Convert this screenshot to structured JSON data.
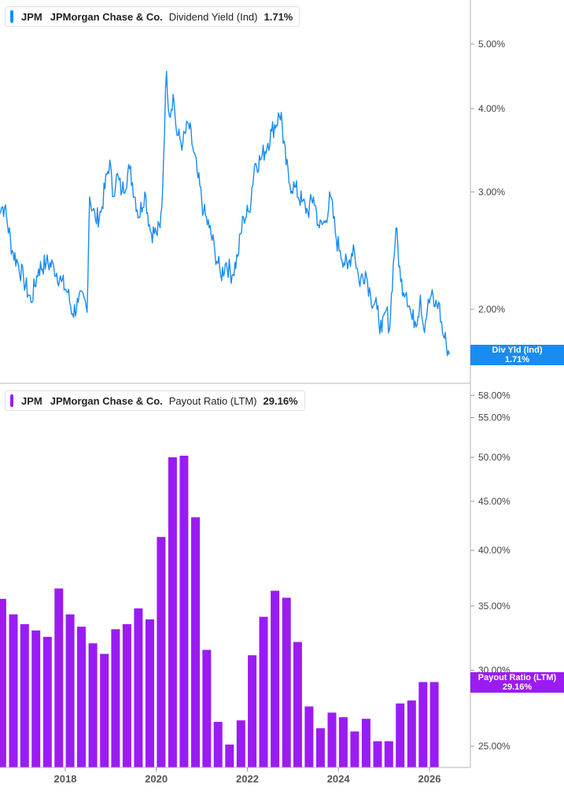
{
  "chart_data": [
    {
      "type": "line",
      "legend": {
        "ticker": "JPM",
        "company": "JPMorgan Chase & Co.",
        "metric": "Dividend Yield (Ind)",
        "value": "1.71%",
        "color": "#1a8cf0"
      },
      "y_scale": "log",
      "ylim": [
        1.62,
        5.6
      ],
      "y_ticks": [
        {
          "value": 5.0,
          "label": "5.00%"
        },
        {
          "value": 4.0,
          "label": "4.00%"
        },
        {
          "value": 3.0,
          "label": "3.00%"
        },
        {
          "value": 2.0,
          "label": "2.00%"
        }
      ],
      "flag": {
        "label": "Div Yld (Ind)",
        "value": "1.71%",
        "y": 1.71
      },
      "series": [
        {
          "x": [
            "2016-07-01",
            "2016-09-01",
            "2016-11-01",
            "2016-12-15",
            "2017-02-01",
            "2017-04-01",
            "2017-06-01",
            "2017-08-01",
            "2017-10-01",
            "2017-12-01",
            "2018-01-20",
            "2018-03-01",
            "2018-04-15",
            "2018-06-01",
            "2018-06-25",
            "2018-07-15",
            "2018-09-01",
            "2018-10-15",
            "2018-12-24",
            "2019-01-15",
            "2019-02-15",
            "2019-04-01",
            "2019-06-01",
            "2019-08-15",
            "2019-10-01",
            "2019-11-15",
            "2020-01-01",
            "2020-02-01",
            "2020-02-20",
            "2020-03-23",
            "2020-04-15",
            "2020-05-15",
            "2020-06-15",
            "2020-08-01",
            "2020-09-15",
            "2020-10-20",
            "2020-12-01",
            "2021-01-15",
            "2021-03-01",
            "2021-04-15",
            "2021-06-01",
            "2021-07-15",
            "2021-09-01",
            "2021-10-15",
            "2021-12-01",
            "2022-01-15",
            "2022-03-01",
            "2022-04-15",
            "2022-06-15",
            "2022-07-15",
            "2022-09-30",
            "2022-10-15",
            "2022-12-01",
            "2023-01-15",
            "2023-03-15",
            "2023-05-01",
            "2023-06-15",
            "2023-08-01",
            "2023-09-15",
            "2023-10-30",
            "2023-12-15",
            "2024-01-15",
            "2024-03-15",
            "2024-05-01",
            "2024-06-15",
            "2024-08-05",
            "2024-09-15",
            "2024-11-06",
            "2024-12-15",
            "2025-01-20",
            "2025-02-15",
            "2025-04-07",
            "2025-05-15",
            "2025-06-30",
            "2025-08-15",
            "2025-10-01",
            "2025-10-20",
            "2025-11-15",
            "2025-12-15",
            "2026-01-15",
            "2026-02-15",
            "2026-03-15",
            "2026-04-15",
            "2026-05-15",
            "2026-06-10"
          ],
          "y": [
            2.88,
            2.84,
            2.45,
            2.35,
            2.22,
            2.05,
            2.3,
            2.35,
            2.32,
            2.2,
            2.12,
            1.97,
            2.05,
            2.08,
            1.98,
            2.95,
            2.72,
            2.8,
            3.35,
            2.95,
            3.18,
            3.0,
            3.25,
            2.75,
            3.0,
            2.62,
            2.6,
            2.65,
            3.0,
            4.55,
            3.9,
            4.2,
            3.65,
            3.55,
            3.8,
            3.5,
            3.15,
            2.8,
            2.65,
            2.45,
            2.25,
            2.35,
            2.25,
            2.4,
            2.75,
            2.8,
            3.3,
            3.35,
            3.55,
            3.7,
            3.95,
            3.55,
            3.1,
            3.05,
            2.9,
            2.8,
            2.95,
            2.65,
            2.7,
            2.95,
            2.55,
            2.45,
            2.3,
            2.5,
            2.2,
            2.28,
            2.1,
            2.0,
            1.85,
            2.0,
            1.87,
            2.65,
            2.2,
            2.12,
            1.93,
            1.95,
            2.1,
            1.87,
            2.0,
            2.1,
            2.02,
            2.05,
            1.85,
            1.78,
            1.71
          ]
        }
      ]
    },
    {
      "type": "bar",
      "legend": {
        "ticker": "JPM",
        "company": "JPMorgan Chase & Co.",
        "metric": "Payout Ratio (LTM)",
        "value": "29.16%",
        "color": "#9a1cf2"
      },
      "y_scale": "log",
      "ylim": [
        23.7,
        59.5
      ],
      "y_ticks": [
        {
          "value": 58.0,
          "label": "58.00%"
        },
        {
          "value": 55.0,
          "label": "55.00%"
        },
        {
          "value": 50.0,
          "label": "50.00%"
        },
        {
          "value": 45.0,
          "label": "45.00%"
        },
        {
          "value": 40.0,
          "label": "40.00%"
        },
        {
          "value": 35.0,
          "label": "35.00%"
        },
        {
          "value": 30.0,
          "label": "30.00%"
        },
        {
          "value": 25.0,
          "label": "25.00%"
        }
      ],
      "flag": {
        "label": "Payout Ratio (LTM)",
        "value": "29.16%",
        "y": 29.16
      },
      "series": [
        {
          "x": [
            "2016-03-31",
            "2016-06-30",
            "2016-09-30",
            "2016-12-31",
            "2017-03-31",
            "2017-06-30",
            "2017-09-30",
            "2017-12-31",
            "2018-03-31",
            "2018-06-30",
            "2018-09-30",
            "2018-12-31",
            "2019-03-31",
            "2019-06-30",
            "2019-09-30",
            "2019-12-31",
            "2020-03-31",
            "2020-06-30",
            "2020-09-30",
            "2020-12-31",
            "2021-03-31",
            "2021-06-30",
            "2021-09-30",
            "2021-12-31",
            "2022-03-31",
            "2022-06-30",
            "2022-09-30",
            "2022-12-31",
            "2023-03-31",
            "2023-06-30",
            "2023-09-30",
            "2023-12-31",
            "2024-03-31",
            "2024-06-30",
            "2024-09-30",
            "2024-12-31",
            "2025-03-31",
            "2025-06-30",
            "2025-09-30",
            "2025-12-31",
            "2026-03-31"
          ],
          "y": [
            33.6,
            34.5,
            35.6,
            34.3,
            33.5,
            33.0,
            32.5,
            36.5,
            34.3,
            33.3,
            32.0,
            31.2,
            33.1,
            33.5,
            34.8,
            33.9,
            41.3,
            50.0,
            50.2,
            43.3,
            31.5,
            26.5,
            25.1,
            26.6,
            31.1,
            34.1,
            36.3,
            35.7,
            32.1,
            27.5,
            26.1,
            27.1,
            26.8,
            25.9,
            26.7,
            25.3,
            25.3,
            27.7,
            27.9,
            29.16,
            29.16
          ]
        }
      ]
    }
  ],
  "x_axis": {
    "labels": [
      {
        "label": "2018",
        "date": "2018-01-01"
      },
      {
        "label": "2020",
        "date": "2020-01-01"
      },
      {
        "label": "2022",
        "date": "2022-01-01"
      },
      {
        "label": "2024",
        "date": "2024-01-01"
      },
      {
        "label": "2026",
        "date": "2026-01-01"
      }
    ]
  }
}
